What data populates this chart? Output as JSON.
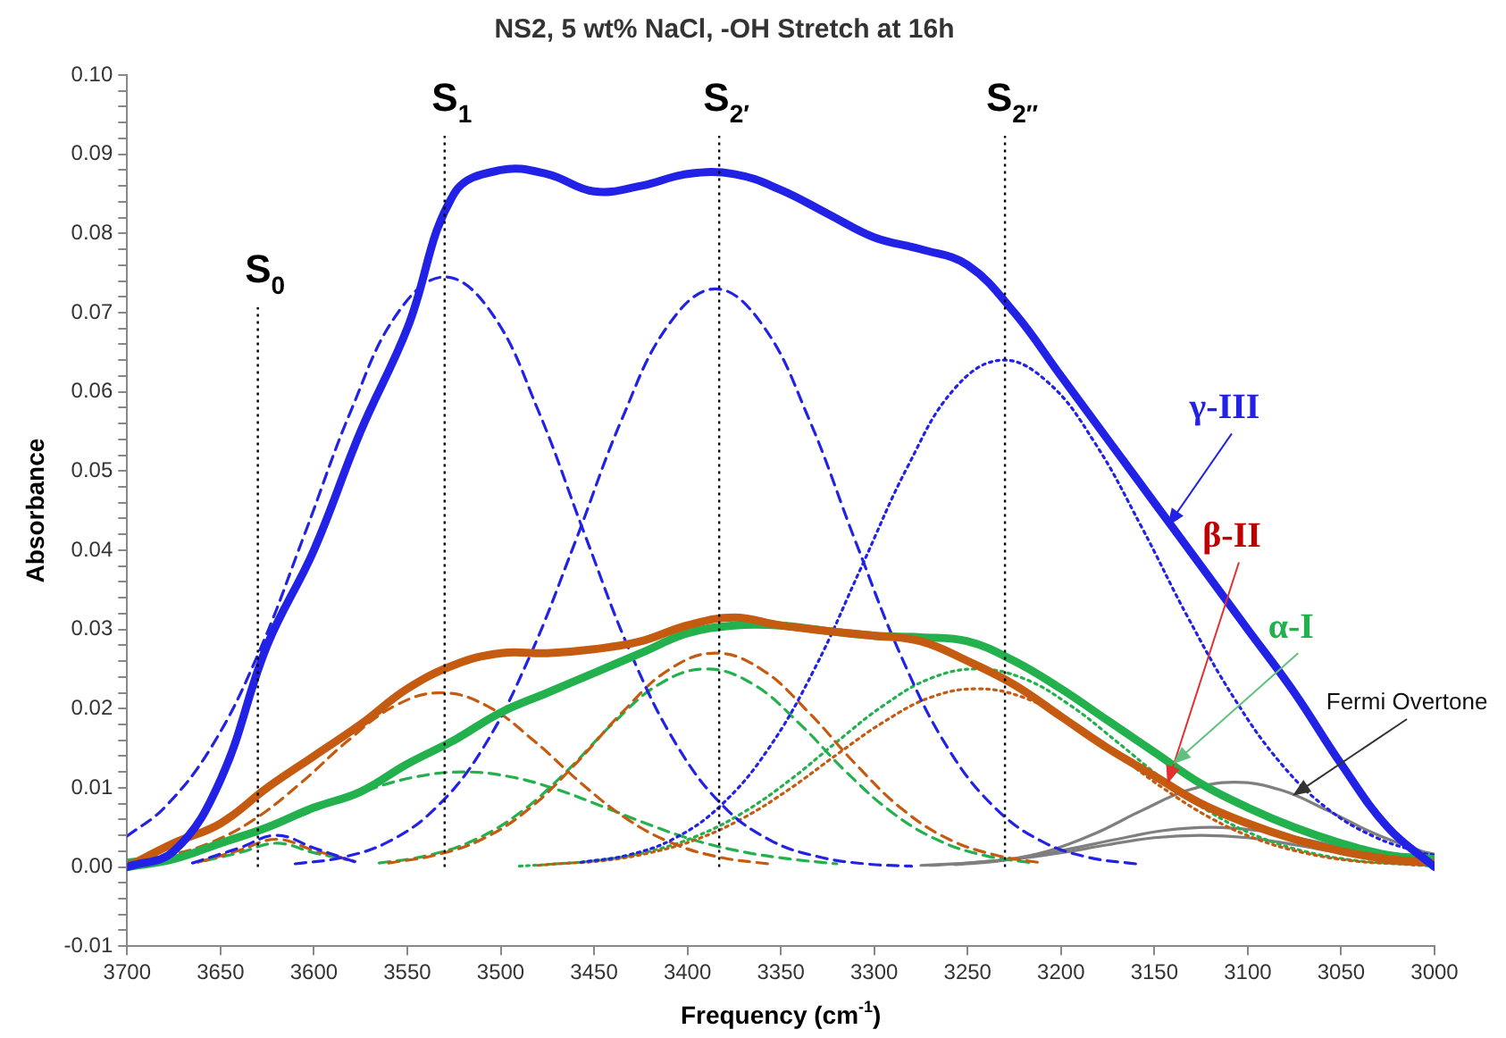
{
  "chart_data": {
    "type": "line",
    "title": "NS2, 5 wt% NaCl, -OH Stretch at 16h",
    "xlabel": "Frequency (cm$^{-1}$)",
    "ylabel": "Absorbance",
    "x": [
      3700,
      3675,
      3650,
      3625,
      3600,
      3575,
      3550,
      3525,
      3500,
      3475,
      3450,
      3425,
      3400,
      3375,
      3350,
      3325,
      3300,
      3275,
      3250,
      3225,
      3200,
      3175,
      3150,
      3125,
      3100,
      3075,
      3050,
      3025,
      3000
    ],
    "xlim": [
      3700,
      3000
    ],
    "xticks": [
      3700,
      3650,
      3600,
      3550,
      3500,
      3450,
      3400,
      3350,
      3300,
      3250,
      3200,
      3150,
      3100,
      3050,
      3000
    ],
    "ylim": [
      -0.01,
      0.1
    ],
    "yticks": [
      {
        "value": -0.01,
        "label": "-0.01"
      },
      {
        "value": -0.008,
        "label": null
      },
      {
        "value": -0.006,
        "label": null
      },
      {
        "value": -0.004,
        "label": null
      },
      {
        "value": -0.002,
        "label": null
      },
      {
        "value": 0,
        "label": "0.00"
      },
      {
        "value": 0.002,
        "label": null
      },
      {
        "value": 0.004,
        "label": null
      },
      {
        "value": 0.006,
        "label": null
      },
      {
        "value": 0.008,
        "label": null
      },
      {
        "value": 0.01,
        "label": "0.01"
      },
      {
        "value": 0.012,
        "label": null
      },
      {
        "value": 0.014,
        "label": null
      },
      {
        "value": 0.016,
        "label": null
      },
      {
        "value": 0.018,
        "label": null
      },
      {
        "value": 0.02,
        "label": "0.02"
      },
      {
        "value": 0.022,
        "label": null
      },
      {
        "value": 0.024,
        "label": null
      },
      {
        "value": 0.026,
        "label": null
      },
      {
        "value": 0.028,
        "label": null
      },
      {
        "value": 0.03,
        "label": "0.03"
      },
      {
        "value": 0.032,
        "label": null
      },
      {
        "value": 0.034,
        "label": null
      },
      {
        "value": 0.036,
        "label": null
      },
      {
        "value": 0.038,
        "label": null
      },
      {
        "value": 0.04,
        "label": "0.04"
      },
      {
        "value": 0.042,
        "label": null
      },
      {
        "value": 0.044,
        "label": null
      },
      {
        "value": 0.046,
        "label": null
      },
      {
        "value": 0.048,
        "label": null
      },
      {
        "value": 0.05,
        "label": "0.05"
      },
      {
        "value": 0.052,
        "label": null
      },
      {
        "value": 0.054,
        "label": null
      },
      {
        "value": 0.056,
        "label": null
      },
      {
        "value": 0.058,
        "label": null
      },
      {
        "value": 0.06,
        "label": "0.06"
      },
      {
        "value": 0.062,
        "label": null
      },
      {
        "value": 0.064,
        "label": null
      },
      {
        "value": 0.066,
        "label": null
      },
      {
        "value": 0.068,
        "label": null
      },
      {
        "value": 0.07,
        "label": "0.07"
      },
      {
        "value": 0.072,
        "label": null
      },
      {
        "value": 0.074,
        "label": null
      },
      {
        "value": 0.076,
        "label": null
      },
      {
        "value": 0.078,
        "label": null
      },
      {
        "value": 0.08,
        "label": "0.08"
      },
      {
        "value": 0.082,
        "label": null
      },
      {
        "value": 0.084,
        "label": null
      },
      {
        "value": 0.086,
        "label": null
      },
      {
        "value": 0.088,
        "label": null
      },
      {
        "value": 0.09,
        "label": "0.09"
      },
      {
        "value": 0.092,
        "label": null
      },
      {
        "value": 0.094,
        "label": null
      },
      {
        "value": 0.096,
        "label": null
      },
      {
        "value": 0.098,
        "label": null
      },
      {
        "value": 0.1,
        "label": "0.10"
      }
    ],
    "grid": false,
    "legend": false,
    "marker": "none",
    "series": [
      {
        "color": "#2222e6",
        "line_style": "solid",
        "values": [
          0,
          0.002,
          0.011,
          0.028,
          0.04,
          0.055,
          0.068,
          0.085,
          0.088,
          0.0875,
          0.0853,
          0.086,
          0.0875,
          0.0875,
          0.0855,
          0.0825,
          0.0795,
          0.078,
          0.076,
          0.07,
          0.062,
          0.054,
          0.046,
          0.038,
          0.03,
          0.022,
          0.013,
          0.005,
          0
        ]
      },
      {
        "color": "#c55a11",
        "line_style": "solid",
        "values": [
          0,
          0.003,
          0.0055,
          0.01,
          0.014,
          0.018,
          0.0225,
          0.0255,
          0.027,
          0.027,
          0.0275,
          0.0285,
          0.0305,
          0.0315,
          0.0305,
          0.0298,
          0.0292,
          0.0285,
          0.026,
          0.023,
          0.019,
          0.015,
          0.0115,
          0.008,
          0.0055,
          0.0035,
          0.002,
          0.001,
          0.0005
        ]
      },
      {
        "color": "#22b14c",
        "line_style": "solid",
        "values": [
          0,
          0.001,
          0.003,
          0.005,
          0.0075,
          0.0095,
          0.013,
          0.016,
          0.0195,
          0.022,
          0.0245,
          0.027,
          0.0295,
          0.0305,
          0.0305,
          0.0298,
          0.0292,
          0.029,
          0.0285,
          0.026,
          0.0225,
          0.0185,
          0.0145,
          0.0105,
          0.0075,
          0.005,
          0.003,
          0.0015,
          0.001
        ]
      },
      {
        "color": "#2222e6",
        "line_style": "dashed",
        "x": [
          3700,
          3680,
          3655,
          3630,
          3605,
          3580,
          3555,
          3530,
          3505,
          3480,
          3455,
          3430,
          3405,
          3380,
          3355,
          3330,
          3305,
          3280
        ],
        "values": [
          0.0039,
          0.0075,
          0.0151,
          0.0268,
          0.042,
          0.0577,
          0.07,
          0.0745,
          0.07,
          0.0577,
          0.042,
          0.0268,
          0.0151,
          0.0075,
          0.0033,
          0.0013,
          0.0004,
          0.0001
        ]
      },
      {
        "color": "#2222e6",
        "line_style": "dashed",
        "x": [
          3665,
          3640,
          3620,
          3600,
          3575
        ],
        "values": [
          0.0005,
          0.0024,
          0.004,
          0.0024,
          0.0004
        ]
      },
      {
        "color": "#2222e6",
        "line_style": "dashed",
        "x": [
          3610,
          3585,
          3560,
          3535,
          3510,
          3485,
          3460,
          3435,
          3410,
          3385,
          3360,
          3335,
          3310,
          3285,
          3260,
          3235,
          3210,
          3185,
          3160
        ],
        "values": [
          0.0004,
          0.0012,
          0.0032,
          0.0074,
          0.0148,
          0.0263,
          0.0411,
          0.0566,
          0.0685,
          0.073,
          0.0685,
          0.0566,
          0.0411,
          0.0263,
          0.0148,
          0.0074,
          0.0032,
          0.0012,
          0.0004
        ]
      },
      {
        "color": "#2222e6",
        "line_style": "dotted",
        "x": [
          3457,
          3432,
          3407,
          3382,
          3357,
          3332,
          3307,
          3282,
          3257,
          3232,
          3207,
          3182,
          3157,
          3132,
          3107,
          3082,
          3057,
          3032,
          3007,
          3000
        ],
        "values": [
          0.0006,
          0.0015,
          0.0036,
          0.0078,
          0.0148,
          0.025,
          0.0378,
          0.0506,
          0.0604,
          0.064,
          0.0612,
          0.0536,
          0.043,
          0.0315,
          0.0212,
          0.013,
          0.0073,
          0.0038,
          0.0018,
          0.0015
        ]
      },
      {
        "color": "#c55a11",
        "line_style": "dashed",
        "x": [
          3700,
          3682,
          3657,
          3632,
          3607,
          3582,
          3557,
          3532,
          3507,
          3482,
          3457,
          3432,
          3407,
          3382,
          3357
        ],
        "values": [
          0.0006,
          0.0012,
          0.0029,
          0.006,
          0.0106,
          0.0159,
          0.0203,
          0.022,
          0.0203,
          0.0159,
          0.0106,
          0.006,
          0.0029,
          0.0012,
          0.0004
        ]
      },
      {
        "color": "#c55a11",
        "line_style": "dashed",
        "x": [
          3662,
          3640,
          3620,
          3600,
          3578
        ],
        "values": [
          0.0006,
          0.0021,
          0.0035,
          0.0021,
          0.0007
        ]
      },
      {
        "color": "#c55a11",
        "line_style": "dashed",
        "x": [
          3560,
          3535,
          3510,
          3485,
          3460,
          3435,
          3410,
          3385,
          3360,
          3335,
          3310,
          3285,
          3260,
          3235,
          3210
        ],
        "values": [
          0.0005,
          0.0015,
          0.0035,
          0.0073,
          0.013,
          0.0195,
          0.0249,
          0.027,
          0.0249,
          0.0195,
          0.013,
          0.0073,
          0.0035,
          0.0015,
          0.0005
        ]
      },
      {
        "color": "#c55a11",
        "line_style": "dotted",
        "x": [
          3480,
          3470,
          3445,
          3420,
          3395,
          3370,
          3345,
          3320,
          3295,
          3270,
          3245,
          3220,
          3195,
          3170,
          3145,
          3120,
          3095,
          3070,
          3045,
          3020,
          3000
        ],
        "values": [
          0.0002,
          0.0004,
          0.0008,
          0.0018,
          0.0035,
          0.0062,
          0.0099,
          0.0142,
          0.0183,
          0.0214,
          0.0225,
          0.0214,
          0.0183,
          0.0142,
          0.0099,
          0.0062,
          0.0035,
          0.0018,
          0.0008,
          0.0004,
          0.0003
        ]
      },
      {
        "color": "#22b14c",
        "line_style": "dashed",
        "x": [
          3700,
          3695,
          3670,
          3645,
          3620,
          3595,
          3570,
          3545,
          3520,
          3495,
          3470,
          3445,
          3420,
          3395,
          3370,
          3345,
          3320
        ],
        "values": [
          0.0009,
          0.001,
          0.0019,
          0.0033,
          0.0053,
          0.0076,
          0.0098,
          0.0114,
          0.012,
          0.0114,
          0.0098,
          0.0076,
          0.0053,
          0.0033,
          0.0019,
          0.001,
          0.0004
        ]
      },
      {
        "color": "#22b14c",
        "line_style": "dashed",
        "x": [
          3658,
          3640,
          3620,
          3600,
          3582
        ],
        "values": [
          0.0008,
          0.0018,
          0.003,
          0.0018,
          0.0009
        ]
      },
      {
        "color": "#22b14c",
        "line_style": "dashed",
        "x": [
          3565,
          3540,
          3515,
          3490,
          3465,
          3440,
          3415,
          3390,
          3365,
          3340,
          3315,
          3290,
          3265,
          3240,
          3215
        ],
        "values": [
          0.0005,
          0.0014,
          0.0033,
          0.0068,
          0.012,
          0.0181,
          0.0231,
          0.025,
          0.0231,
          0.0181,
          0.012,
          0.0068,
          0.0033,
          0.0014,
          0.0005
        ]
      },
      {
        "color": "#22b14c",
        "line_style": "dotted",
        "x": [
          3490,
          3470,
          3445,
          3420,
          3395,
          3370,
          3345,
          3320,
          3295,
          3270,
          3245,
          3220,
          3195,
          3170,
          3145,
          3120,
          3095,
          3070,
          3045,
          3020,
          3000
        ],
        "values": [
          0.0001,
          0.0004,
          0.0009,
          0.002,
          0.0039,
          0.0069,
          0.011,
          0.0158,
          0.0204,
          0.0238,
          0.025,
          0.0238,
          0.0204,
          0.0158,
          0.011,
          0.0069,
          0.0039,
          0.002,
          0.0009,
          0.0004,
          0.0001
        ]
      },
      {
        "color": "#7f7f7f",
        "line_style": "solid",
        "x": [
          3257,
          3232,
          3207,
          3182,
          3157,
          3132,
          3107,
          3082,
          3057,
          3032,
          3007,
          3000
        ],
        "values": [
          0.0003,
          0.0008,
          0.002,
          0.0042,
          0.0071,
          0.0097,
          0.0107,
          0.0097,
          0.0071,
          0.0042,
          0.002,
          0.0016
        ]
      },
      {
        "color": "#7f7f7f",
        "line_style": "solid",
        "x": [
          3270,
          3245,
          3220,
          3195,
          3170,
          3145,
          3120,
          3095,
          3070,
          3045,
          3020,
          3000
        ],
        "values": [
          0.0002,
          0.0006,
          0.0012,
          0.0023,
          0.0035,
          0.0046,
          0.005,
          0.0046,
          0.0035,
          0.0023,
          0.0012,
          0.0009
        ]
      },
      {
        "color": "#7f7f7f",
        "line_style": "solid",
        "x": [
          3275,
          3250,
          3225,
          3200,
          3175,
          3150,
          3125,
          3100,
          3075,
          3050,
          3025,
          3000
        ],
        "values": [
          0.0002,
          0.0005,
          0.001,
          0.0018,
          0.0028,
          0.0037,
          0.004,
          0.0037,
          0.0028,
          0.0018,
          0.001,
          0.0005
        ]
      }
    ],
    "ref_lines": [
      {
        "axis": "x",
        "value": 3630,
        "label": "S$_{0}$",
        "line_style": "dotted"
      },
      {
        "axis": "x",
        "value": 3530,
        "label": "S$_{1}$",
        "line_style": "dotted"
      },
      {
        "axis": "x",
        "value": 3383,
        "label": "S$_{2′}$",
        "line_style": "dotted"
      },
      {
        "axis": "x",
        "value": 3230,
        "label": "S$_{2″}$",
        "line_style": "dotted"
      }
    ],
    "annotations": [
      {
        "text": "γ-III",
        "x": 3143,
        "y": 0.043
      },
      {
        "text": "β-II",
        "x": 3143,
        "y": 0.0105
      },
      {
        "text": "α-I",
        "x": 3140,
        "y": 0.013
      },
      {
        "text": "Fermi Overtone",
        "x": 3076,
        "y": 0.009
      }
    ]
  }
}
